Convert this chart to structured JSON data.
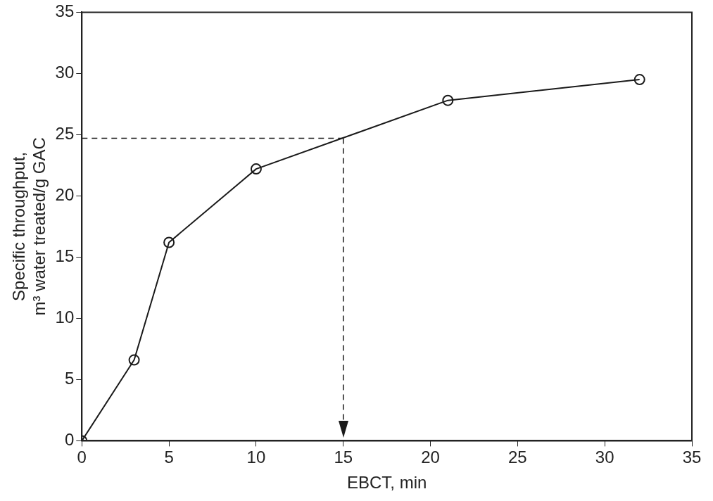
{
  "chart_data": {
    "type": "line",
    "xlabel": "EBCT, min",
    "ylabel": "Specific throughput,\nm³ water treated/g GAC",
    "x": [
      0,
      3,
      5,
      10,
      21,
      32
    ],
    "series": [
      {
        "color": "#1a1a1a",
        "values": [
          0,
          6.6,
          16.2,
          22.2,
          27.8,
          29.5
        ]
      }
    ],
    "xlim": [
      0,
      35
    ],
    "xticks": [
      0,
      5,
      10,
      15,
      20,
      25,
      30,
      35
    ],
    "ylim": [
      0,
      35
    ],
    "yticks": [
      0,
      5,
      10,
      15,
      20,
      25,
      30,
      35
    ],
    "grid": false,
    "legend": false,
    "marker": "circle",
    "line_style": "solid",
    "ref_lines": [
      {
        "axis": "x",
        "value": 15,
        "line_style": "dashed",
        "color": "#1a1a1a"
      },
      {
        "axis": "y",
        "value": 24.7,
        "line_style": "dashed",
        "color": "#1a1a1a"
      }
    ]
  }
}
